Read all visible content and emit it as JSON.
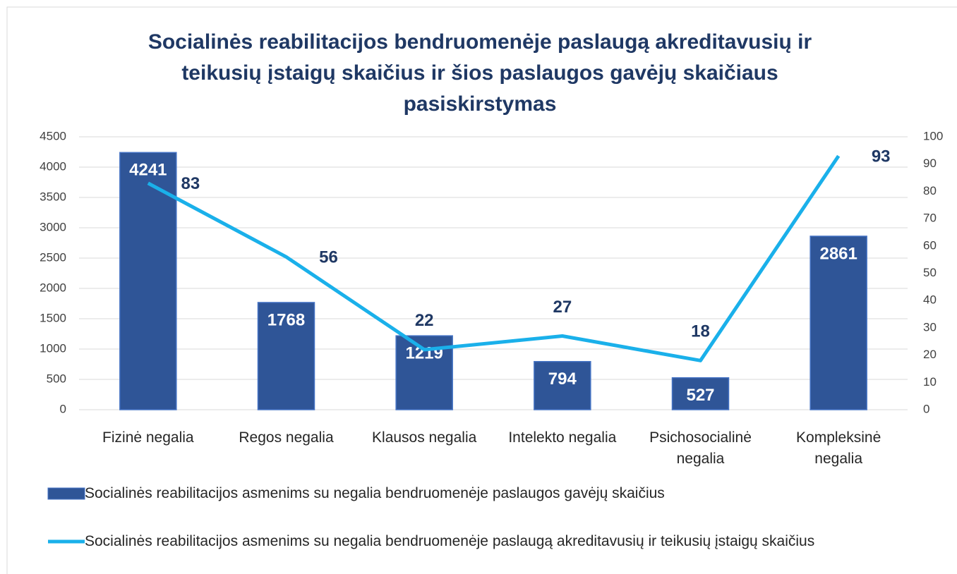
{
  "chart_data": {
    "type": "bar_line",
    "title": "Socialinės reabilitacijos bendruomenėje paslaugą akreditavusių ir teikusių įstaigų skaičius ir šios paslaugos gavėjų skaičiaus pasiskirstymas",
    "categories": [
      "Fizinė negalia",
      "Regos negalia",
      "Klausos negalia",
      "Intelekto negalia",
      "Psichosocialinė negalia",
      "Kompleksinė negalia"
    ],
    "series": [
      {
        "name": "Socialinės reabilitacijos asmenims su negalia bendruomenėje paslaugos gavėjų skaičius",
        "type": "bar",
        "color": "#2F5597",
        "values": [
          4241,
          1768,
          1219,
          794,
          527,
          2861
        ]
      },
      {
        "name": "Socialinės reabilitacijos asmenims su negalia bendruomenėje paslaugą akreditavusių ir teikusių įstaigų skaičius",
        "type": "line",
        "axis": "y2",
        "color": "#1AB0EA",
        "values": [
          83,
          56,
          22,
          27,
          18,
          93
        ]
      }
    ],
    "ylim": [
      0,
      4500
    ],
    "yticks": [
      0,
      500,
      1000,
      1500,
      2000,
      2500,
      3000,
      3500,
      4000,
      4500
    ],
    "y2lim": [
      0,
      100
    ],
    "y2ticks": [
      0,
      10,
      20,
      30,
      40,
      50,
      60,
      70,
      80,
      90,
      100
    ],
    "grid": true,
    "legend": "bottom"
  }
}
